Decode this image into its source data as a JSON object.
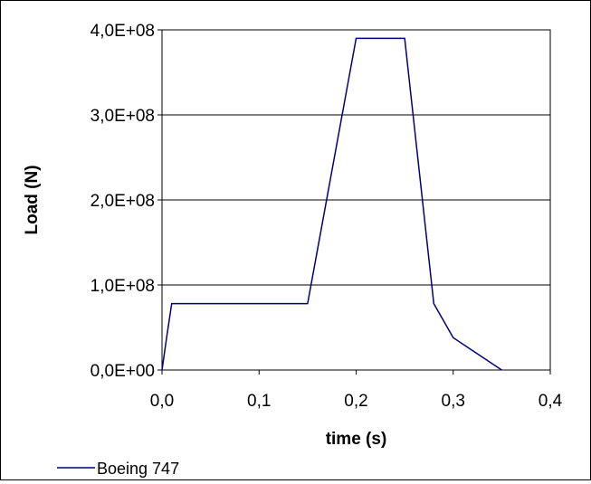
{
  "chart_data": {
    "type": "line",
    "title": "",
    "xlabel": "time (s)",
    "ylabel": "Load (N)",
    "xlim": [
      0,
      0.4
    ],
    "ylim": [
      0,
      400000000
    ],
    "x_ticks": [
      "0,0",
      "0,1",
      "0,2",
      "0,3",
      "0,4"
    ],
    "y_ticks": [
      "0,0E+00",
      "1,0E+08",
      "2,0E+08",
      "3,0E+08",
      "4,0E+08"
    ],
    "grid": "horizontal",
    "legend_position": "bottom-left",
    "series": [
      {
        "name": "Boeing 747",
        "color": "#000080",
        "x": [
          0.0,
          0.005,
          0.01,
          0.15,
          0.2,
          0.25,
          0.28,
          0.3,
          0.35
        ],
        "y": [
          0,
          40000000,
          78000000,
          78000000,
          390000000,
          390000000,
          78000000,
          38000000,
          0
        ]
      }
    ]
  }
}
